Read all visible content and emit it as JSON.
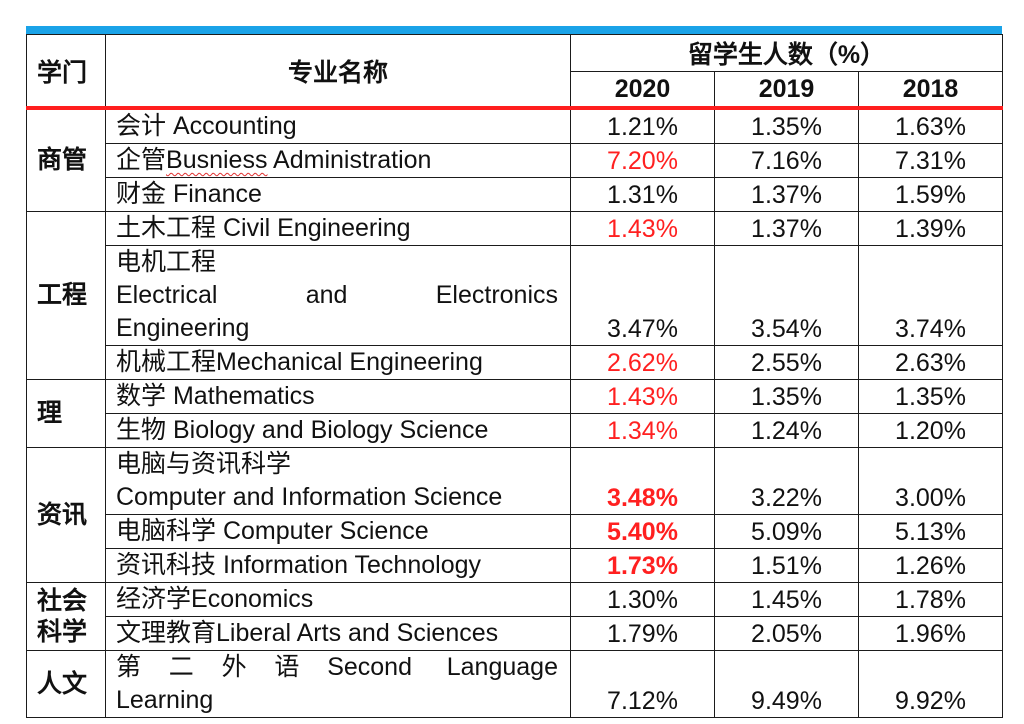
{
  "colors": {
    "top_bar": "#1aa3e8",
    "header_rule": "#ff1e1e",
    "highlight": "#ff2020"
  },
  "header": {
    "discipline": "学门",
    "major": "专业名称",
    "share": "留学生人数（%）",
    "years": [
      "2020",
      "2019",
      "2018"
    ]
  },
  "groups": [
    {
      "discipline": "商管",
      "rows": [
        {
          "major_zh": "会计",
          "major_en": "Accounting",
          "values": [
            "1.21%",
            "1.35%",
            "1.63%"
          ],
          "style2020": "normal"
        },
        {
          "major_zh": "企管",
          "major_en_misspelled": "Busniess",
          "major_en_rest": "Administration",
          "values": [
            "7.20%",
            "7.16%",
            "7.31%"
          ],
          "style2020": "red"
        },
        {
          "major_zh": "财金",
          "major_en": "Finance",
          "values": [
            "1.31%",
            "1.37%",
            "1.59%"
          ],
          "style2020": "normal"
        }
      ]
    },
    {
      "discipline": "工程",
      "rows": [
        {
          "major_zh": "土木工程",
          "major_en": "Civil Engineering",
          "values": [
            "1.43%",
            "1.37%",
            "1.39%"
          ],
          "style2020": "red"
        },
        {
          "major_zh": "电机工程",
          "major_en_lines": [
            "Electrical",
            "and",
            "Electronics"
          ],
          "major_en_last": "Engineering",
          "values": [
            "3.47%",
            "3.54%",
            "3.74%"
          ],
          "style2020": "normal"
        },
        {
          "major_zh": "机械工程",
          "major_en": "Mechanical Engineering",
          "values": [
            "2.62%",
            "2.55%",
            "2.63%"
          ],
          "style2020": "red"
        }
      ]
    },
    {
      "discipline": "理",
      "rows": [
        {
          "major_zh": "数学",
          "major_en": "Mathematics",
          "values": [
            "1.43%",
            "1.35%",
            "1.35%"
          ],
          "style2020": "red"
        },
        {
          "major_zh": "生物",
          "major_en": "Biology and Biology Science",
          "values": [
            "1.34%",
            "1.24%",
            "1.20%"
          ],
          "style2020": "red"
        }
      ]
    },
    {
      "discipline": "资讯",
      "rows": [
        {
          "major_zh": "电脑与资讯科学",
          "major_en": "Computer and Information Science",
          "values": [
            "3.48%",
            "3.22%",
            "3.00%"
          ],
          "style2020": "red-bold"
        },
        {
          "major_zh": "电脑科学",
          "major_en": "Computer Science",
          "values": [
            "5.40%",
            "5.09%",
            "5.13%"
          ],
          "style2020": "red-bold"
        },
        {
          "major_zh": "资讯科技",
          "major_en": "Information Technology",
          "values": [
            "1.73%",
            "1.51%",
            "1.26%"
          ],
          "style2020": "red-bold"
        }
      ]
    },
    {
      "discipline_lines": [
        "社会",
        "科学"
      ],
      "rows": [
        {
          "major_zh": "经济学",
          "major_en": "Economics",
          "values": [
            "1.30%",
            "1.45%",
            "1.78%"
          ],
          "style2020": "normal"
        },
        {
          "major_zh": "文理教育",
          "major_en": "Liberal Arts and Sciences",
          "values": [
            "1.79%",
            "2.05%",
            "1.96%"
          ],
          "style2020": "normal"
        }
      ]
    },
    {
      "discipline": "人文",
      "rows": [
        {
          "major_zh": "第二外语",
          "major_en_lines": [
            "Second",
            "Language"
          ],
          "major_en_last": "Learning",
          "values": [
            "7.12%",
            "9.49%",
            "9.92%"
          ],
          "style2020": "normal"
        }
      ]
    }
  ]
}
